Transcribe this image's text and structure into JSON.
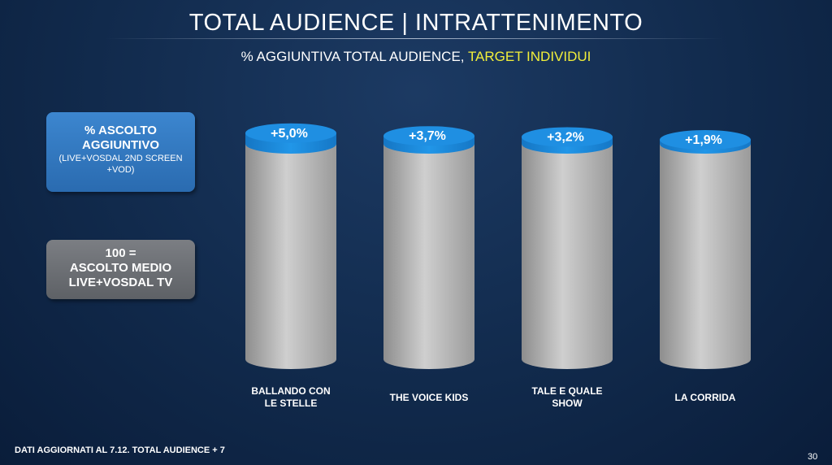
{
  "header": {
    "title": "TOTAL AUDIENCE | INTRATTENIMENTO",
    "subtitle_prefix": "% AGGIUNTIVA TOTAL AUDIENCE, ",
    "subtitle_highlight": "TARGET INDIVIDUI"
  },
  "legend": {
    "additional": {
      "line1": "% ASCOLTO",
      "line2": "AGGIUNTIVO",
      "line3": "(LIVE+VOSDAL 2ND SCREEN",
      "line4": "+VOD)",
      "color": "#2f77c0"
    },
    "base": {
      "line1": "100 =",
      "line2": "ASCOLTO MEDIO",
      "line3": "LIVE+VOSDAL TV",
      "color": "#6b6e73"
    }
  },
  "chart_data": {
    "type": "bar",
    "stacked": true,
    "categories": [
      "BALLANDO CON LE STELLE",
      "THE VOICE KIDS",
      "TALE E QUALE SHOW",
      "LA CORRIDA"
    ],
    "categories_display": [
      [
        "BALLANDO CON",
        "LE STELLE"
      ],
      [
        "THE VOICE KIDS"
      ],
      [
        "TALE E QUALE",
        "SHOW"
      ],
      [
        "LA CORRIDA"
      ]
    ],
    "series": [
      {
        "name": "100 = ASCOLTO MEDIO LIVE+VOSDAL TV",
        "values": [
          100,
          100,
          100,
          100
        ],
        "color": "#b8b8b8"
      },
      {
        "name": "% ASCOLTO AGGIUNTIVO",
        "values": [
          5.0,
          3.7,
          3.2,
          1.9
        ],
        "color": "#1e8fe0"
      }
    ],
    "data_labels": [
      "+5,0%",
      "+3,7%",
      "+3,2%",
      "+1,9%"
    ]
  },
  "footer": {
    "note": "DATI AGGIORNATI AL 7.12. TOTAL AUDIENCE + 7",
    "page": "30"
  }
}
